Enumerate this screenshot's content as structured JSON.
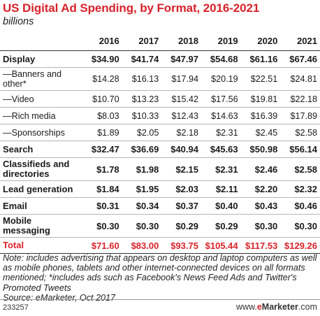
{
  "header": {
    "title": "US Digital Ad Spending, by Format, 2016-2021",
    "subtitle": "billions"
  },
  "chart_data": {
    "type": "table",
    "title": "US Digital Ad Spending, by Format, 2016-2021",
    "subtitle": "billions",
    "columns": [
      "2016",
      "2017",
      "2018",
      "2019",
      "2020",
      "2021"
    ],
    "rows": [
      {
        "label": "Display",
        "level": "main",
        "height": "h1",
        "values": [
          "$34.90",
          "$41.74",
          "$47.97",
          "$54.68",
          "$61.16",
          "$67.46"
        ]
      },
      {
        "label": "—Banners and other*",
        "level": "sub",
        "height": "h2",
        "values": [
          "$14.28",
          "$16.13",
          "$17.94",
          "$20.19",
          "$22.51",
          "$24.81"
        ]
      },
      {
        "label": "—Video",
        "level": "sub",
        "height": "h1",
        "values": [
          "$10.70",
          "$13.23",
          "$15.42",
          "$17.56",
          "$19.81",
          "$22.18"
        ]
      },
      {
        "label": "—Rich media",
        "level": "sub",
        "height": "h1",
        "values": [
          "$8.03",
          "$10.33",
          "$12.43",
          "$14.63",
          "$16.39",
          "$17.89"
        ]
      },
      {
        "label": "—Sponsorships",
        "level": "sub",
        "height": "h1",
        "values": [
          "$1.89",
          "$2.05",
          "$2.18",
          "$2.31",
          "$2.45",
          "$2.58"
        ]
      },
      {
        "label": "Search",
        "level": "main",
        "height": "h1",
        "values": [
          "$32.47",
          "$36.69",
          "$40.94",
          "$45.63",
          "$50.98",
          "$56.14"
        ]
      },
      {
        "label": "Classifieds and directories",
        "level": "main",
        "height": "h2",
        "values": [
          "$1.78",
          "$1.98",
          "$2.15",
          "$2.31",
          "$2.46",
          "$2.58"
        ]
      },
      {
        "label": "Lead generation",
        "level": "main",
        "height": "h1",
        "values": [
          "$1.84",
          "$1.95",
          "$2.03",
          "$2.11",
          "$2.20",
          "$2.32"
        ]
      },
      {
        "label": "Email",
        "level": "main",
        "height": "h1",
        "values": [
          "$0.31",
          "$0.34",
          "$0.37",
          "$0.40",
          "$0.43",
          "$0.46"
        ]
      },
      {
        "label": "Mobile messaging",
        "level": "main",
        "height": "h2",
        "values": [
          "$0.30",
          "$0.30",
          "$0.29",
          "$0.29",
          "$0.30",
          "$0.30"
        ]
      }
    ],
    "total": {
      "label": "Total",
      "values": [
        "$71.60",
        "$83.00",
        "$93.75",
        "$105.44",
        "$117.53",
        "$129.26"
      ]
    }
  },
  "note": {
    "text": "Note: includes advertising that appears on desktop and laptop computers as well as mobile phones, tablets and other internet-connected devices on all formats mentioned; *includes ads such as Facebook's News Feed Ads and Twitter's Promoted Tweets",
    "source": "Source: eMarketer, Oct 2017"
  },
  "footer": {
    "code": "233257",
    "brand_prefix": "www.",
    "brand_e": "e",
    "brand_rest": "Marketer",
    "brand_suffix": ".com"
  },
  "colors": {
    "accent": "#d9222a"
  }
}
